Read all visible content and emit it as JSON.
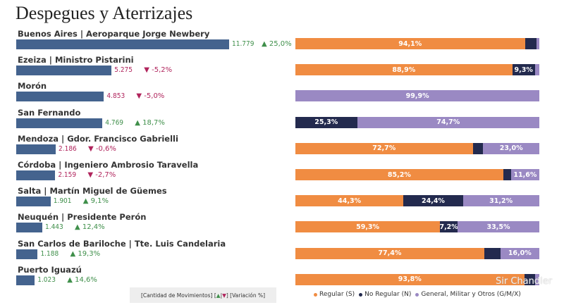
{
  "title": "Despegues y Aterrizajes",
  "chart_data": {
    "type": "bar",
    "title": "Despegues y Aterrizajes",
    "categories": [
      "Buenos Aires | Aeroparque Jorge Newbery",
      "Ezeiza | Ministro Pistarini",
      "Morón",
      "San Fernando",
      "Mendoza | Gdor. Francisco Gabrielli",
      "Córdoba | Ingeniero Ambrosio Taravella",
      "Salta | Martín Miguel de Güemes",
      "Neuquén | Presidente Perón",
      "San Carlos de Bariloche | Tte. Luis Candelaria",
      "Puerto Iguazú"
    ],
    "movements": [
      11779,
      5275,
      4853,
      4769,
      2186,
      2159,
      1901,
      1443,
      1188,
      1023
    ],
    "movements_labels": [
      "11.779",
      "5.275",
      "4.853",
      "4.769",
      "2.186",
      "2.159",
      "1.901",
      "1.443",
      "1.188",
      "1.023"
    ],
    "variation_pct": [
      25.0,
      -5.2,
      -5.0,
      18.7,
      -0.6,
      -2.7,
      9.1,
      12.4,
      19.3,
      14.6
    ],
    "variation_labels": [
      "25,0%",
      "-5,2%",
      "-5,0%",
      "18,7%",
      "-0,6%",
      "-2,7%",
      "9,1%",
      "12,4%",
      "19,3%",
      "14,6%"
    ],
    "xlim": [
      0,
      11779
    ],
    "stacked": {
      "type": "bar",
      "stacking": "100%",
      "series": [
        {
          "name": "Regular (S)",
          "color": "#f08c42",
          "values": [
            94.1,
            88.9,
            0.0,
            0.0,
            72.7,
            85.2,
            44.3,
            59.3,
            77.4,
            93.8
          ],
          "labels": [
            "94,1%",
            "88,9%",
            "",
            "",
            "72,7%",
            "85,2%",
            "44,3%",
            "59,3%",
            "77,4%",
            "93,8%"
          ]
        },
        {
          "name": "No Regular (N)",
          "color": "#232a4e",
          "values": [
            4.8,
            9.3,
            0.1,
            25.3,
            4.3,
            3.2,
            24.4,
            7.2,
            6.6,
            4.6
          ],
          "labels": [
            "",
            "9,3%",
            "",
            "25,3%",
            "",
            "",
            "24,4%",
            "7,2%",
            "",
            ""
          ]
        },
        {
          "name": "General, Militar y Otros (G/M/X)",
          "color": "#9a89c3",
          "values": [
            1.1,
            1.8,
            99.9,
            74.7,
            23.0,
            11.6,
            31.2,
            33.5,
            16.0,
            1.6
          ],
          "labels": [
            "",
            "",
            "99,9%",
            "74,7%",
            "23,0%",
            "11,6%",
            "31,2%",
            "33,5%",
            "16,0%",
            ""
          ]
        }
      ]
    }
  },
  "colors": {
    "movements_bar": "#44638e",
    "up": "#3f8f4a",
    "down": "#b0245c"
  },
  "footnote": {
    "prefix": "[Cantidad de Movimientos] [",
    "up_symbol": "▲",
    "sep": "|",
    "down_symbol": "▼",
    "suffix": "] [Variación %]"
  },
  "legend": [
    "Regular (S)",
    "No Regular (N)",
    "General, Militar y Otros (G/M/X)"
  ],
  "watermark": "Sir Chandler"
}
